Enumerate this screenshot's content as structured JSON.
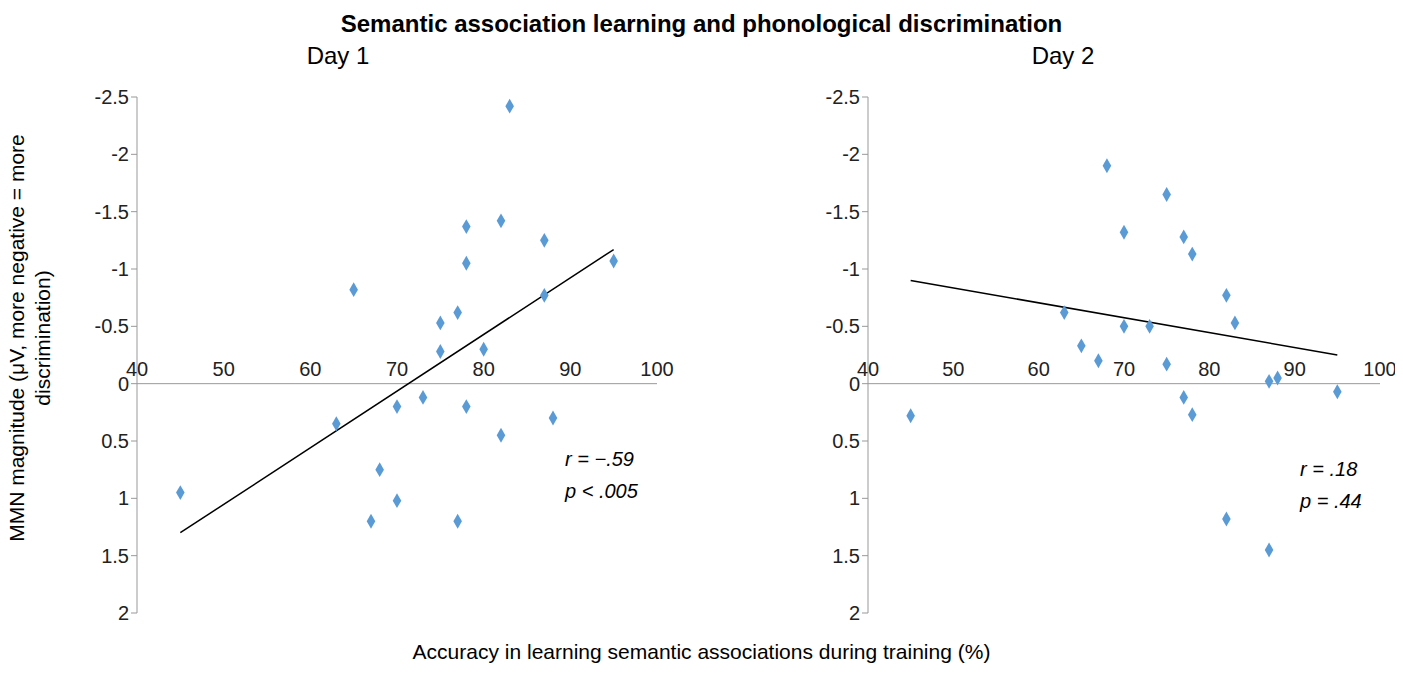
{
  "title": "Semantic association learning and phonological discrimination",
  "xlabel": "Accuracy in learning semantic associations during training (%)",
  "ylabel": "MMN magnitude (μV, more negative = more discrimination)",
  "chart_data": [
    {
      "type": "scatter",
      "title": "Day 1",
      "x": [
        45,
        63,
        65,
        67,
        68,
        70,
        70,
        73,
        75,
        75,
        77,
        77,
        78,
        78,
        78,
        80,
        82,
        82,
        83,
        87,
        87,
        88,
        95
      ],
      "y": [
        0.95,
        0.35,
        -0.82,
        1.2,
        0.75,
        0.2,
        1.02,
        0.12,
        -0.53,
        -0.28,
        -0.62,
        1.2,
        -1.37,
        -1.05,
        0.2,
        -0.3,
        -1.42,
        0.45,
        -2.42,
        -1.25,
        -0.77,
        0.3,
        -1.07
      ],
      "color": "#5b9bd5",
      "marker": "diamond",
      "trend_line": {
        "x": [
          45,
          95
        ],
        "y": [
          1.3,
          -1.17
        ]
      },
      "annotations": [
        "r = −.59",
        "p < .005"
      ],
      "xlim": [
        40,
        100
      ],
      "xticks": [
        40,
        50,
        60,
        70,
        80,
        90,
        100
      ],
      "ylim": [
        -2.5,
        2
      ],
      "yticks": [
        -2.5,
        -2,
        -1.5,
        -1,
        -0.5,
        0,
        0.5,
        1,
        1.5,
        2
      ]
    },
    {
      "type": "scatter",
      "title": "Day 2",
      "x": [
        45,
        63,
        65,
        67,
        68,
        70,
        70,
        73,
        75,
        75,
        77,
        77,
        78,
        78,
        82,
        82,
        83,
        87,
        87,
        88,
        95
      ],
      "y": [
        0.28,
        -0.62,
        -0.33,
        -0.2,
        -1.9,
        -1.32,
        -0.5,
        -0.5,
        -1.65,
        -0.17,
        -1.28,
        0.12,
        -1.13,
        0.27,
        -0.77,
        1.18,
        -0.53,
        -0.02,
        1.45,
        -0.05,
        0.07
      ],
      "color": "#5b9bd5",
      "marker": "diamond",
      "trend_line": {
        "x": [
          45,
          95
        ],
        "y": [
          -0.9,
          -0.25
        ]
      },
      "annotations": [
        "r = .18",
        "p = .44"
      ],
      "xlim": [
        40,
        100
      ],
      "xticks": [
        40,
        50,
        60,
        70,
        80,
        90,
        100
      ],
      "ylim": [
        -2.5,
        2
      ],
      "yticks": [
        -2.5,
        -2,
        -1.5,
        -1,
        -0.5,
        0,
        0.5,
        1,
        1.5,
        2
      ]
    }
  ]
}
